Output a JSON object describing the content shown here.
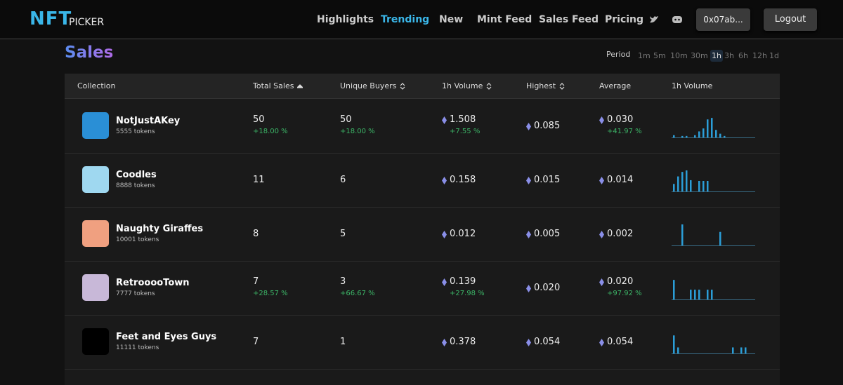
{
  "header": {
    "logo": {
      "mark": "NFT",
      "word": "PICKER"
    },
    "nav": [
      "Highlights",
      "Trending",
      "New",
      "Mint Feed",
      "Sales Feed",
      "Pricing"
    ],
    "active_nav": 1,
    "wallet": "0x07ab...",
    "logout": "Logout"
  },
  "page": {
    "title": "Sales",
    "period_label": "Period",
    "periods": [
      "1m",
      "5m",
      "10m",
      "30m",
      "1h",
      "3h",
      "6h",
      "12h",
      "1d"
    ],
    "active_period": 4
  },
  "table": {
    "columns": [
      {
        "label": "Collection"
      },
      {
        "label": "Total Sales",
        "sort": "asc"
      },
      {
        "label": "Unique Buyers",
        "sort": "both"
      },
      {
        "label": "1h Volume",
        "sort": "both"
      },
      {
        "label": "Highest",
        "sort": "both"
      },
      {
        "label": "Average"
      },
      {
        "label": "1h Volume"
      }
    ],
    "rows": [
      {
        "name": "NotJustAKey",
        "tokens": "5555 tokens",
        "total_sales": "50",
        "total_sales_change": "+18.00 %",
        "unique_buyers": "50",
        "unique_buyers_change": "+18.00 %",
        "volume": "1.508",
        "volume_change": "+7.55 %",
        "highest": "0.085",
        "average": "0.030",
        "average_change": "+41.97 %",
        "sparkline": [
          3,
          0,
          2,
          2,
          0,
          3,
          8,
          12,
          24,
          26,
          10,
          5,
          2,
          0,
          0,
          0,
          0,
          0,
          0,
          0
        ]
      },
      {
        "name": "Coodles",
        "tokens": "8888 tokens",
        "total_sales": "11",
        "unique_buyers": "6",
        "volume": "0.158",
        "highest": "0.015",
        "average": "0.014",
        "sparkline": [
          10,
          20,
          26,
          28,
          15,
          0,
          14,
          14,
          14,
          0,
          0,
          0,
          0,
          0,
          0,
          0,
          0,
          0,
          0,
          0
        ]
      },
      {
        "name": "Naughty Giraffes",
        "tokens": "10001 tokens",
        "total_sales": "8",
        "unique_buyers": "5",
        "volume": "0.012",
        "highest": "0.005",
        "average": "0.002",
        "sparkline": [
          0,
          0,
          28,
          0,
          0,
          0,
          0,
          0,
          0,
          0,
          0,
          18,
          0,
          0,
          0,
          0,
          0,
          0,
          0,
          0
        ]
      },
      {
        "name": "RetrooooTown",
        "tokens": "7777 tokens",
        "total_sales": "7",
        "total_sales_change": "+28.57 %",
        "unique_buyers": "3",
        "unique_buyers_change": "+66.67 %",
        "volume": "0.139",
        "volume_change": "+27.98 %",
        "highest": "0.020",
        "average": "0.020",
        "average_change": "+97.92 %",
        "sparkline": [
          26,
          0,
          0,
          0,
          13,
          13,
          13,
          0,
          13,
          13,
          0,
          0,
          0,
          0,
          0,
          0,
          0,
          0,
          0,
          0
        ]
      },
      {
        "name": "Feet and Eyes Guys",
        "tokens": "11111 tokens",
        "total_sales": "7",
        "unique_buyers": "1",
        "volume": "0.378",
        "highest": "0.054",
        "average": "0.054",
        "sparkline": [
          24,
          8,
          0,
          0,
          0,
          0,
          0,
          0,
          0,
          0,
          0,
          0,
          0,
          0,
          8,
          0,
          8,
          8,
          0,
          0
        ]
      }
    ]
  }
}
